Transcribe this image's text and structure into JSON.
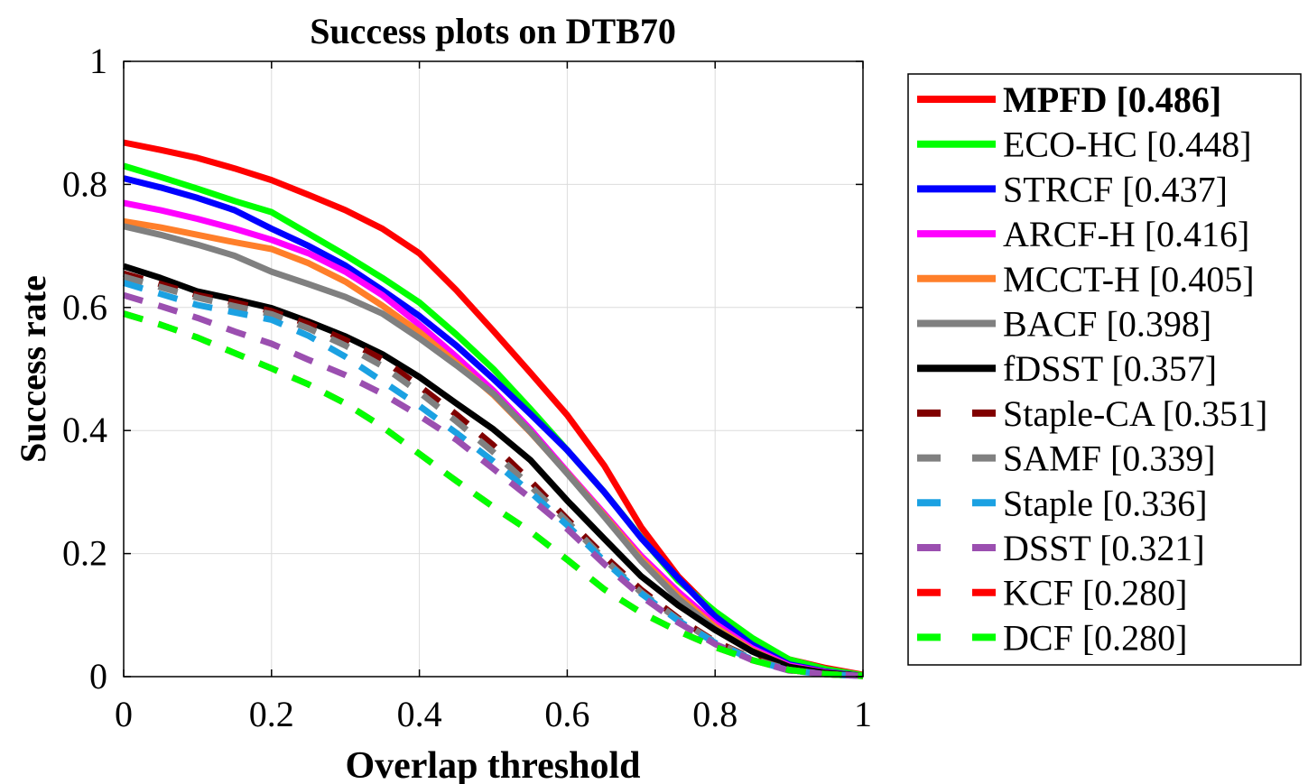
{
  "chart_data": {
    "type": "line",
    "title": "Success plots on DTB70",
    "xlabel": "Overlap threshold",
    "ylabel": "Success rate",
    "xlim": [
      0,
      1
    ],
    "ylim": [
      0,
      1
    ],
    "xticks": [
      0,
      0.2,
      0.4,
      0.6,
      0.8,
      1
    ],
    "xtick_labels": [
      "0",
      "0.2",
      "0.4",
      "0.6",
      "0.8",
      "1"
    ],
    "yticks": [
      0,
      0.2,
      0.4,
      0.6,
      0.8,
      1
    ],
    "ytick_labels": [
      "0",
      "0.2",
      "0.4",
      "0.6",
      "0.8",
      "1"
    ],
    "grid": true,
    "legend_position": "outside-right",
    "x": [
      0,
      0.05,
      0.1,
      0.15,
      0.2,
      0.25,
      0.3,
      0.35,
      0.4,
      0.45,
      0.5,
      0.55,
      0.6,
      0.65,
      0.7,
      0.75,
      0.8,
      0.85,
      0.9,
      0.95,
      1
    ],
    "series": [
      {
        "name": "MPFD [0.486]",
        "color": "#ff0000",
        "dash": false,
        "bold": true,
        "values": [
          0.868,
          0.856,
          0.843,
          0.826,
          0.807,
          0.783,
          0.758,
          0.728,
          0.688,
          0.628,
          0.562,
          0.494,
          0.425,
          0.343,
          0.243,
          0.163,
          0.103,
          0.058,
          0.028,
          0.014,
          0.003
        ]
      },
      {
        "name": "ECO-HC [0.448]",
        "color": "#00ff00",
        "dash": false,
        "bold": false,
        "values": [
          0.83,
          0.812,
          0.793,
          0.773,
          0.755,
          0.72,
          0.685,
          0.648,
          0.608,
          0.556,
          0.5,
          0.435,
          0.368,
          0.3,
          0.226,
          0.156,
          0.106,
          0.063,
          0.028,
          0.012,
          0.002
        ]
      },
      {
        "name": "STRCF [0.437]",
        "color": "#0000ff",
        "dash": false,
        "bold": false,
        "values": [
          0.81,
          0.795,
          0.778,
          0.758,
          0.728,
          0.7,
          0.668,
          0.628,
          0.586,
          0.538,
          0.484,
          0.427,
          0.368,
          0.3,
          0.225,
          0.16,
          0.098,
          0.052,
          0.02,
          0.008,
          0.001
        ]
      },
      {
        "name": "ARCF-H [0.416]",
        "color": "#ff00ff",
        "dash": false,
        "bold": false,
        "values": [
          0.77,
          0.758,
          0.744,
          0.728,
          0.71,
          0.688,
          0.658,
          0.62,
          0.572,
          0.52,
          0.465,
          0.402,
          0.333,
          0.265,
          0.196,
          0.138,
          0.086,
          0.046,
          0.018,
          0.007,
          0.001
        ]
      },
      {
        "name": "MCCT-H [0.405]",
        "color": "#ff7f2a",
        "dash": false,
        "bold": false,
        "values": [
          0.74,
          0.73,
          0.718,
          0.706,
          0.695,
          0.672,
          0.642,
          0.603,
          0.56,
          0.51,
          0.458,
          0.397,
          0.331,
          0.262,
          0.192,
          0.132,
          0.081,
          0.043,
          0.016,
          0.006,
          0.001
        ]
      },
      {
        "name": "BACF [0.398]",
        "color": "#808080",
        "dash": false,
        "bold": false,
        "values": [
          0.732,
          0.718,
          0.702,
          0.684,
          0.658,
          0.638,
          0.617,
          0.59,
          0.55,
          0.506,
          0.46,
          0.398,
          0.33,
          0.26,
          0.188,
          0.127,
          0.077,
          0.041,
          0.015,
          0.005,
          0.001
        ]
      },
      {
        "name": "fDSST [0.357]",
        "color": "#000000",
        "dash": false,
        "bold": false,
        "values": [
          0.667,
          0.648,
          0.626,
          0.613,
          0.599,
          0.577,
          0.553,
          0.524,
          0.487,
          0.444,
          0.402,
          0.352,
          0.286,
          0.224,
          0.163,
          0.116,
          0.076,
          0.041,
          0.016,
          0.006,
          0.001
        ]
      },
      {
        "name": "Staple-CA [0.351]",
        "color": "#800000",
        "dash": true,
        "bold": false,
        "values": [
          0.655,
          0.638,
          0.62,
          0.608,
          0.594,
          0.573,
          0.547,
          0.516,
          0.472,
          0.426,
          0.376,
          0.318,
          0.256,
          0.196,
          0.141,
          0.095,
          0.057,
          0.03,
          0.011,
          0.004,
          0.001
        ]
      },
      {
        "name": "SAMF [0.339]",
        "color": "#808080",
        "dash": true,
        "bold": false,
        "values": [
          0.65,
          0.633,
          0.616,
          0.602,
          0.589,
          0.566,
          0.538,
          0.505,
          0.462,
          0.415,
          0.365,
          0.31,
          0.252,
          0.191,
          0.137,
          0.093,
          0.056,
          0.029,
          0.011,
          0.004,
          0.001
        ]
      },
      {
        "name": "Staple [0.336]",
        "color": "#1ba1e2",
        "dash": true,
        "bold": false,
        "values": [
          0.64,
          0.622,
          0.604,
          0.592,
          0.58,
          0.554,
          0.52,
          0.48,
          0.44,
          0.396,
          0.35,
          0.3,
          0.246,
          0.188,
          0.135,
          0.091,
          0.055,
          0.028,
          0.01,
          0.004,
          0.001
        ]
      },
      {
        "name": "DSST [0.321]",
        "color": "#9b4fb0",
        "dash": true,
        "bold": false,
        "values": [
          0.62,
          0.602,
          0.583,
          0.561,
          0.541,
          0.515,
          0.49,
          0.46,
          0.424,
          0.385,
          0.338,
          0.29,
          0.24,
          0.183,
          0.131,
          0.088,
          0.053,
          0.027,
          0.01,
          0.004,
          0.001
        ]
      },
      {
        "name": "KCF [0.280]",
        "color": "#ff0000",
        "dash": true,
        "bold": false,
        "values": [
          0.59,
          0.572,
          0.551,
          0.526,
          0.501,
          0.475,
          0.444,
          0.406,
          0.362,
          0.318,
          0.276,
          0.236,
          0.19,
          0.142,
          0.104,
          0.074,
          0.048,
          0.027,
          0.011,
          0.004,
          0.001
        ]
      },
      {
        "name": "DCF [0.280]",
        "color": "#00ff00",
        "dash": true,
        "bold": false,
        "values": [
          0.59,
          0.572,
          0.551,
          0.526,
          0.501,
          0.475,
          0.444,
          0.406,
          0.362,
          0.318,
          0.276,
          0.236,
          0.19,
          0.142,
          0.104,
          0.074,
          0.048,
          0.027,
          0.011,
          0.004,
          0.001
        ]
      }
    ]
  }
}
